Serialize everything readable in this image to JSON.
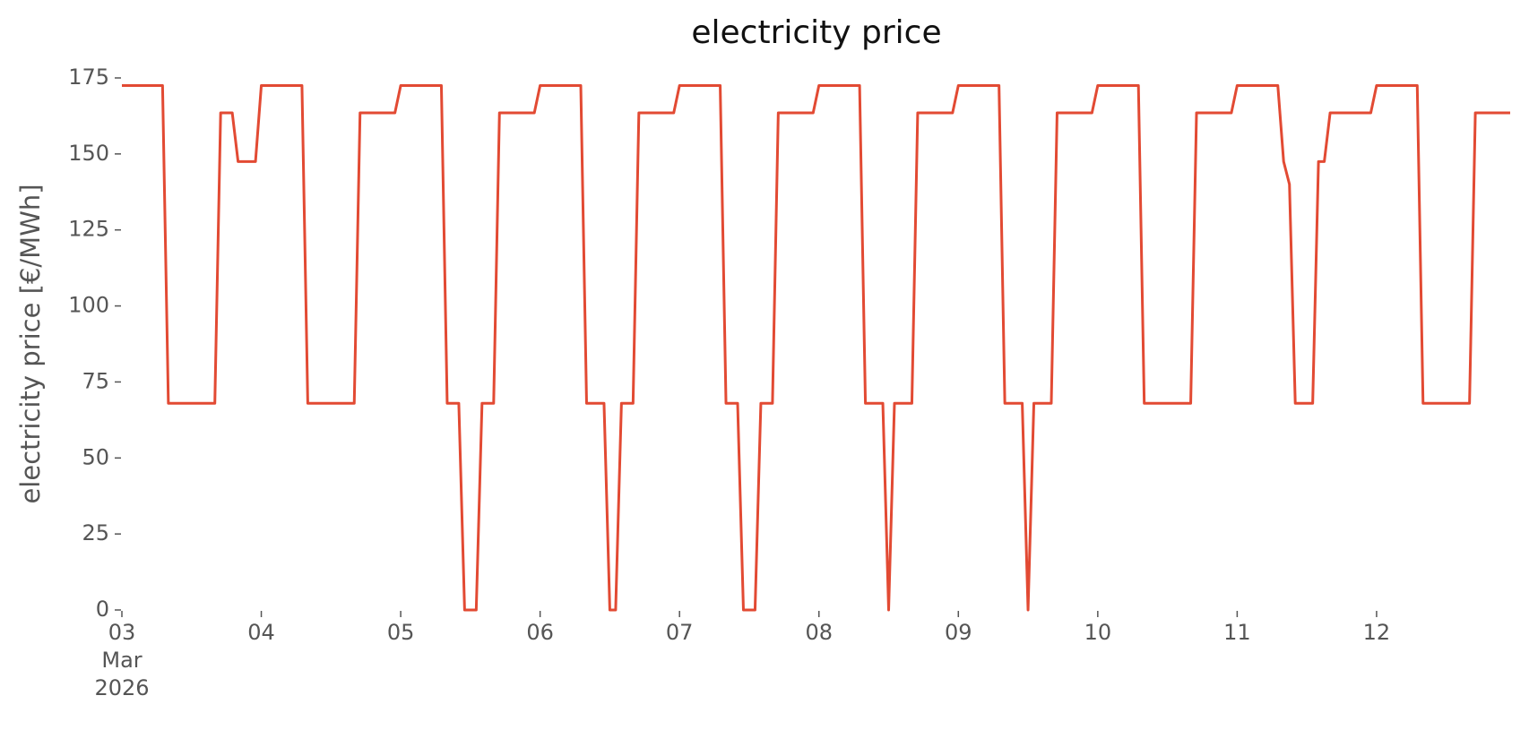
{
  "chart_data": {
    "type": "line",
    "title": "electricity price",
    "y_label": "electricity price [€/MWh]",
    "x": [
      "2026-03-03T00:00",
      "2026-03-03T07:00",
      "2026-03-03T08:00",
      "2026-03-03T16:00",
      "2026-03-03T17:00",
      "2026-03-03T19:00",
      "2026-03-03T20:00",
      "2026-03-03T23:00",
      "2026-03-04T00:00",
      "2026-03-04T07:00",
      "2026-03-04T08:00",
      "2026-03-04T16:00",
      "2026-03-04T17:00",
      "2026-03-04T23:00",
      "2026-03-05T00:00",
      "2026-03-05T07:00",
      "2026-03-05T08:00",
      "2026-03-05T10:00",
      "2026-03-05T11:00",
      "2026-03-05T13:00",
      "2026-03-05T14:00",
      "2026-03-05T16:00",
      "2026-03-05T17:00",
      "2026-03-05T23:00",
      "2026-03-06T00:00",
      "2026-03-06T07:00",
      "2026-03-06T08:00",
      "2026-03-06T11:00",
      "2026-03-06T12:00",
      "2026-03-06T13:00",
      "2026-03-06T14:00",
      "2026-03-06T16:00",
      "2026-03-06T17:00",
      "2026-03-06T23:00",
      "2026-03-07T00:00",
      "2026-03-07T07:00",
      "2026-03-07T08:00",
      "2026-03-07T10:00",
      "2026-03-07T11:00",
      "2026-03-07T13:00",
      "2026-03-07T14:00",
      "2026-03-07T16:00",
      "2026-03-07T17:00",
      "2026-03-07T23:00",
      "2026-03-08T00:00",
      "2026-03-08T07:00",
      "2026-03-08T08:00",
      "2026-03-08T11:00",
      "2026-03-08T12:00",
      "2026-03-08T13:00",
      "2026-03-08T16:00",
      "2026-03-08T17:00",
      "2026-03-08T23:00",
      "2026-03-09T00:00",
      "2026-03-09T07:00",
      "2026-03-09T08:00",
      "2026-03-09T11:00",
      "2026-03-09T12:00",
      "2026-03-09T13:00",
      "2026-03-09T16:00",
      "2026-03-09T17:00",
      "2026-03-09T23:00",
      "2026-03-10T00:00",
      "2026-03-10T07:00",
      "2026-03-10T08:00",
      "2026-03-10T16:00",
      "2026-03-10T17:00",
      "2026-03-10T23:00",
      "2026-03-11T00:00",
      "2026-03-11T07:00",
      "2026-03-11T08:00",
      "2026-03-11T09:00",
      "2026-03-11T10:00",
      "2026-03-11T13:00",
      "2026-03-11T14:00",
      "2026-03-11T15:00",
      "2026-03-11T16:00",
      "2026-03-11T23:00",
      "2026-03-12T00:00",
      "2026-03-12T07:00",
      "2026-03-12T08:00",
      "2026-03-12T16:00",
      "2026-03-12T17:00",
      "2026-03-12T23:00"
    ],
    "series": [
      {
        "name": "electricity price",
        "color": "#e24a33",
        "values": [
          172.5,
          172.5,
          68,
          68,
          163.5,
          163.5,
          147.5,
          147.5,
          172.5,
          172.5,
          68,
          68,
          163.5,
          163.5,
          172.5,
          172.5,
          68,
          68,
          0,
          0,
          68,
          68,
          163.5,
          163.5,
          172.5,
          172.5,
          68,
          68,
          0,
          0,
          68,
          68,
          163.5,
          163.5,
          172.5,
          172.5,
          68,
          68,
          0,
          0,
          68,
          68,
          163.5,
          163.5,
          172.5,
          172.5,
          68,
          68,
          0,
          68,
          68,
          163.5,
          163.5,
          172.5,
          172.5,
          68,
          68,
          0,
          68,
          68,
          163.5,
          163.5,
          172.5,
          172.5,
          68,
          68,
          163.5,
          163.5,
          172.5,
          172.5,
          147.5,
          140,
          68,
          68,
          147.5,
          147.5,
          163.5,
          163.5,
          172.5,
          172.5,
          68,
          68,
          163.5,
          163.5
        ]
      }
    ],
    "xlim": [
      "2026-03-03T00:00",
      "2026-03-12T23:00"
    ],
    "xticks": [
      {
        "value": "2026-03-03T00:00",
        "label": "03\nMar\n2026"
      },
      {
        "value": "2026-03-04T00:00",
        "label": "04"
      },
      {
        "value": "2026-03-05T00:00",
        "label": "05"
      },
      {
        "value": "2026-03-06T00:00",
        "label": "06"
      },
      {
        "value": "2026-03-07T00:00",
        "label": "07"
      },
      {
        "value": "2026-03-08T00:00",
        "label": "08"
      },
      {
        "value": "2026-03-09T00:00",
        "label": "09"
      },
      {
        "value": "2026-03-10T00:00",
        "label": "10"
      },
      {
        "value": "2026-03-11T00:00",
        "label": "11"
      },
      {
        "value": "2026-03-12T00:00",
        "label": "12"
      }
    ],
    "ylim": [
      0,
      175
    ],
    "yticks": [
      0,
      25,
      50,
      75,
      100,
      125,
      150,
      175
    ],
    "grid": false
  }
}
